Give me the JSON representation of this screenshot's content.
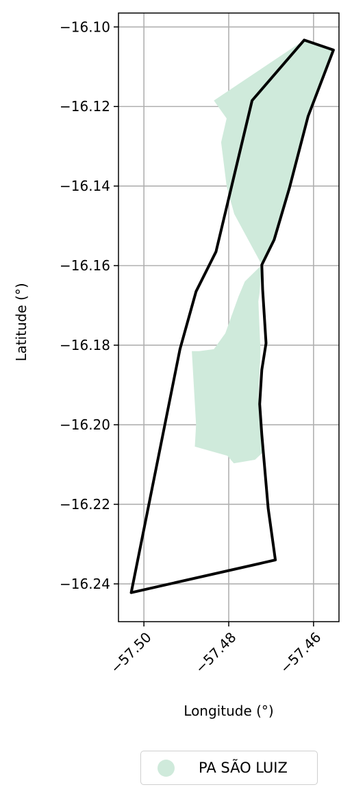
{
  "chart_data": {
    "type": "map",
    "xlabel": "Longitude (°)",
    "ylabel": "Latitude (°)",
    "xlim": [
      -57.506,
      -57.454
    ],
    "ylim": [
      -16.2495,
      -16.0965
    ],
    "x_ticks": [
      {
        "value": -57.5,
        "label": "−57.50"
      },
      {
        "value": -57.48,
        "label": "−57.48"
      },
      {
        "value": -57.46,
        "label": "−57.46"
      }
    ],
    "y_ticks": [
      {
        "value": -16.1,
        "label": "−16.10"
      },
      {
        "value": -16.12,
        "label": "−16.12"
      },
      {
        "value": -16.14,
        "label": "−16.14"
      },
      {
        "value": -16.16,
        "label": "−16.16"
      },
      {
        "value": -16.18,
        "label": "−16.18"
      },
      {
        "value": -16.2,
        "label": "−16.20"
      },
      {
        "value": -16.22,
        "label": "−16.22"
      },
      {
        "value": -16.24,
        "label": "−16.24"
      }
    ],
    "grid": true,
    "layers": [
      {
        "name": "PA SÃO LUIZ",
        "kind": "filled-polygon",
        "color": "#cfeadb",
        "coordinates": [
          [
            -57.4622,
            -16.1033
          ],
          [
            -57.4553,
            -16.1058
          ],
          [
            -57.4613,
            -16.1225
          ],
          [
            -57.4657,
            -16.1405
          ],
          [
            -57.4693,
            -16.1535
          ],
          [
            -57.4722,
            -16.1598
          ],
          [
            -57.4762,
            -16.164
          ],
          [
            -57.4777,
            -16.1678
          ],
          [
            -57.4808,
            -16.177
          ],
          [
            -57.4835,
            -16.181
          ],
          [
            -57.487,
            -16.1815
          ],
          [
            -57.4887,
            -16.1815
          ],
          [
            -57.4877,
            -16.2
          ],
          [
            -57.488,
            -16.2055
          ],
          [
            -57.4803,
            -16.2078
          ],
          [
            -57.4788,
            -16.2097
          ],
          [
            -57.4738,
            -16.2088
          ],
          [
            -57.472,
            -16.207
          ],
          [
            -57.473,
            -16.193
          ],
          [
            -57.4725,
            -16.1815
          ],
          [
            -57.473,
            -16.169
          ],
          [
            -57.4727,
            -16.1665
          ],
          [
            -57.4722,
            -16.1598
          ],
          [
            -57.4787,
            -16.147
          ],
          [
            -57.4805,
            -16.14
          ],
          [
            -57.4818,
            -16.129
          ],
          [
            -57.4805,
            -16.123
          ],
          [
            -57.4835,
            -16.1185
          ]
        ]
      },
      {
        "name": "outline",
        "kind": "boundary",
        "color": "#000000",
        "coordinates": [
          [
            -57.503,
            -16.2422
          ],
          [
            -57.469,
            -16.234
          ],
          [
            -57.4707,
            -16.221
          ],
          [
            -57.4722,
            -16.2025
          ],
          [
            -57.4727,
            -16.1948
          ],
          [
            -57.4722,
            -16.1862
          ],
          [
            -57.4712,
            -16.1795
          ],
          [
            -57.472,
            -16.166
          ],
          [
            -57.4722,
            -16.1598
          ],
          [
            -57.4693,
            -16.1535
          ],
          [
            -57.4657,
            -16.1405
          ],
          [
            -57.4613,
            -16.1225
          ],
          [
            -57.4553,
            -16.1058
          ],
          [
            -57.4622,
            -16.1033
          ],
          [
            -57.4745,
            -16.1185
          ],
          [
            -57.483,
            -16.1565
          ],
          [
            -57.4877,
            -16.1665
          ],
          [
            -57.4915,
            -16.181
          ]
        ]
      }
    ],
    "legend": {
      "position": "bottom-center",
      "entries": [
        {
          "label": "PA SÃO LUIZ",
          "color": "#cfeadb"
        }
      ]
    }
  }
}
